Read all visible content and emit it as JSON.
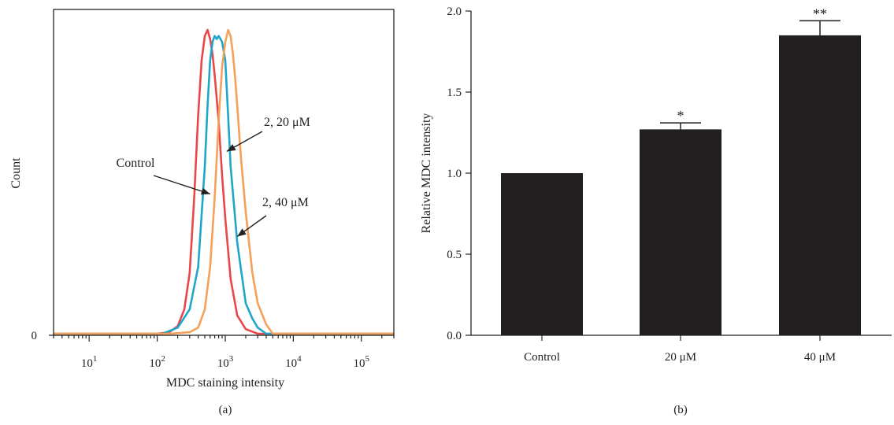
{
  "figure": {
    "panels": [
      {
        "label": "(a)"
      },
      {
        "label": "(b)"
      }
    ]
  },
  "chart_data": [
    {
      "type": "line",
      "panel": "(a)",
      "xlabel": "MDC staining intensity",
      "ylabel": "Count",
      "x_scale": "log",
      "x_tick_labels": [
        {
          "value": 10,
          "base": "10",
          "exp": "1"
        },
        {
          "value": 100,
          "base": "10",
          "exp": "2"
        },
        {
          "value": 1000,
          "base": "10",
          "exp": "3"
        },
        {
          "value": 10000,
          "base": "10",
          "exp": "4"
        },
        {
          "value": 100000,
          "base": "10",
          "exp": "5"
        }
      ],
      "y_tick_labels": [
        {
          "value": 0,
          "label": "0"
        }
      ],
      "xlim": [
        3,
        300000
      ],
      "ylim": [
        0,
        100
      ],
      "series": [
        {
          "color": "#e8474c",
          "x": [
            100,
            150,
            200,
            250,
            300,
            350,
            400,
            450,
            500,
            550,
            600,
            650,
            700,
            800,
            900,
            1000,
            1200,
            1500,
            2000,
            3000,
            300000
          ],
          "y": [
            0,
            0.5,
            2.5,
            8,
            20,
            45,
            72,
            90,
            98,
            100,
            97,
            92,
            85,
            70,
            52,
            38,
            18,
            6,
            1.5,
            0,
            0
          ]
        },
        {
          "color": "#1fa6c8",
          "x": [
            120,
            200,
            300,
            400,
            500,
            550,
            600,
            650,
            700,
            750,
            800,
            900,
            1000,
            1100,
            1200,
            1500,
            2000,
            2500,
            3000,
            4000,
            300000
          ],
          "y": [
            0,
            2,
            8,
            22,
            55,
            75,
            90,
            96,
            98,
            97,
            98,
            96,
            90,
            72,
            55,
            30,
            10,
            5,
            2,
            0,
            0
          ]
        },
        {
          "color": "#f5a15a",
          "x": [
            150,
            300,
            400,
            500,
            600,
            700,
            800,
            900,
            1000,
            1100,
            1200,
            1300,
            1400,
            1500,
            1700,
            2000,
            2500,
            3000,
            4000,
            5000,
            300000
          ],
          "y": [
            0,
            0.5,
            2,
            8,
            22,
            45,
            70,
            88,
            96,
            100,
            98,
            92,
            84,
            75,
            58,
            40,
            20,
            10,
            3,
            0,
            0
          ]
        }
      ],
      "annotations": [
        {
          "text": "Control",
          "target_x": 600,
          "target_y": 46
        },
        {
          "text": "2, 20 μM",
          "target_x": 1050,
          "target_y": 60
        },
        {
          "text": "2, 40 μM",
          "target_x": 1500,
          "target_y": 32
        }
      ]
    },
    {
      "type": "bar",
      "panel": "(b)",
      "categories": [
        "Control",
        "20 μM",
        "40 μM"
      ],
      "values": [
        1.0,
        1.27,
        1.85
      ],
      "errors": [
        0.0,
        0.04,
        0.09
      ],
      "significance": [
        "",
        "*",
        "**"
      ],
      "ylabel": "Relative MDC intensity",
      "ylim": [
        0,
        2.0
      ],
      "y_ticks": [
        0.0,
        0.5,
        1.0,
        1.5,
        2.0
      ],
      "y_tick_labels": [
        "0.0",
        "0.5",
        "1.0",
        "1.5",
        "2.0"
      ],
      "bar_color": "#231f20"
    }
  ]
}
